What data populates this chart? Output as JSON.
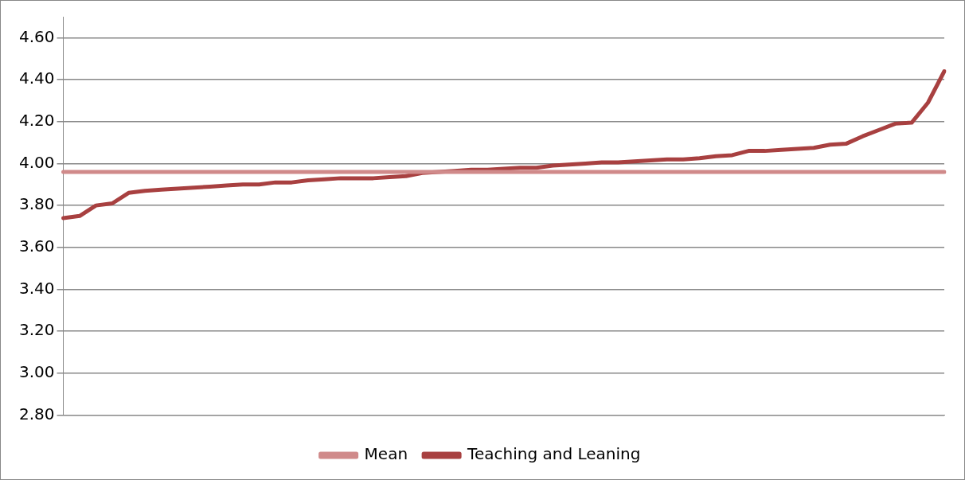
{
  "chart_data": {
    "type": "line",
    "categories": [
      null,
      null,
      null,
      null,
      null,
      null,
      null,
      null,
      null,
      null,
      null,
      null,
      null,
      null,
      null,
      null,
      null,
      null,
      null,
      null,
      null,
      null,
      null,
      null,
      null,
      null,
      null,
      null,
      null,
      null,
      null,
      null,
      null,
      null,
      null,
      null,
      null,
      null,
      null,
      null,
      null,
      null,
      null,
      null,
      null,
      null,
      null,
      null,
      null,
      null,
      null,
      null,
      null,
      null,
      null
    ],
    "series": [
      {
        "name": "Mean",
        "color": "#d08a8a",
        "values": [
          3.96,
          3.96,
          3.96,
          3.96,
          3.96,
          3.96,
          3.96,
          3.96,
          3.96,
          3.96,
          3.96,
          3.96,
          3.96,
          3.96,
          3.96,
          3.96,
          3.96,
          3.96,
          3.96,
          3.96,
          3.96,
          3.96,
          3.96,
          3.96,
          3.96,
          3.96,
          3.96,
          3.96,
          3.96,
          3.96,
          3.96,
          3.96,
          3.96,
          3.96,
          3.96,
          3.96,
          3.96,
          3.96,
          3.96,
          3.96,
          3.96,
          3.96,
          3.96,
          3.96,
          3.96,
          3.96,
          3.96,
          3.96,
          3.96,
          3.96,
          3.96,
          3.96,
          3.96,
          3.96,
          3.96
        ]
      },
      {
        "name": "Teaching and Leaning",
        "color": "#a84040",
        "values": [
          3.74,
          3.75,
          3.8,
          3.81,
          3.86,
          3.87,
          3.875,
          3.88,
          3.885,
          3.89,
          3.895,
          3.9,
          3.9,
          3.91,
          3.91,
          3.92,
          3.925,
          3.93,
          3.93,
          3.93,
          3.935,
          3.94,
          3.955,
          3.96,
          3.965,
          3.97,
          3.97,
          3.975,
          3.98,
          3.98,
          3.99,
          3.995,
          4.0,
          4.005,
          4.005,
          4.01,
          4.015,
          4.02,
          4.02,
          4.025,
          4.035,
          4.04,
          4.06,
          4.06,
          4.065,
          4.07,
          4.075,
          4.09,
          4.095,
          4.13,
          4.16,
          4.19,
          4.195,
          4.29,
          4.44
        ]
      }
    ],
    "ylim": [
      2.8,
      4.7
    ],
    "yticks": [
      {
        "value": 2.8,
        "label": "2.80"
      },
      {
        "value": 3.0,
        "label": "3.00"
      },
      {
        "value": 3.2,
        "label": "3.20"
      },
      {
        "value": 3.4,
        "label": "3.40"
      },
      {
        "value": 3.6,
        "label": "3.60"
      },
      {
        "value": 3.8,
        "label": "3.80"
      },
      {
        "value": 4.0,
        "label": "4.00"
      },
      {
        "value": 4.2,
        "label": "4.20"
      },
      {
        "value": 4.4,
        "label": "4.40"
      },
      {
        "value": 4.6,
        "label": "4.60"
      }
    ],
    "grid": "y",
    "legend": "bottom",
    "marker": "none",
    "line_style": "solid"
  }
}
